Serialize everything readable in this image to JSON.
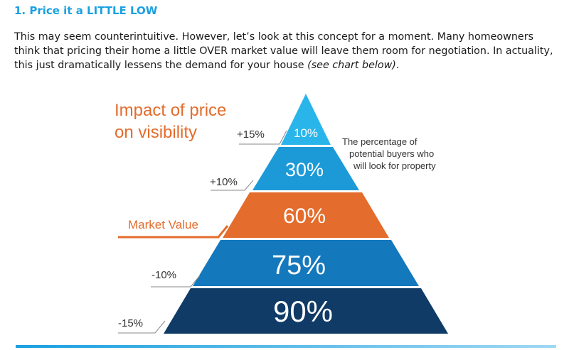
{
  "heading": "1. Price it a LITTLE LOW",
  "intro": {
    "text": "This may seem counterintuitive. However, let’s look at this concept for a moment. Many homeowners think that pricing their home a little OVER market value will leave them room for negotiation. In actuality, this just dramatically lessens the demand for your house ",
    "italic": "(see chart below)",
    "end": "."
  },
  "diagram": {
    "title_line1": "Impact of price",
    "title_line2": "on visibility",
    "note_line1": "The percentage of",
    "note_line2": "potential buyers who",
    "note_line3": "will look for property",
    "levels": [
      {
        "percent": "10%",
        "price_label": "+15%",
        "color": "#29b5ea"
      },
      {
        "percent": "30%",
        "price_label": "+10%",
        "color": "#1c9ad8"
      },
      {
        "percent": "60%",
        "price_label": "Market Value",
        "color": "#e46c2c"
      },
      {
        "percent": "75%",
        "price_label": "-10%",
        "color": "#1478bd"
      },
      {
        "percent": "90%",
        "price_label": "-15%",
        "color": "#0f3b66"
      }
    ],
    "colors": {
      "title": "#e46c2c",
      "market_value": "#e46c2c",
      "leader": "#8a8a8a",
      "label": "#333333"
    }
  }
}
